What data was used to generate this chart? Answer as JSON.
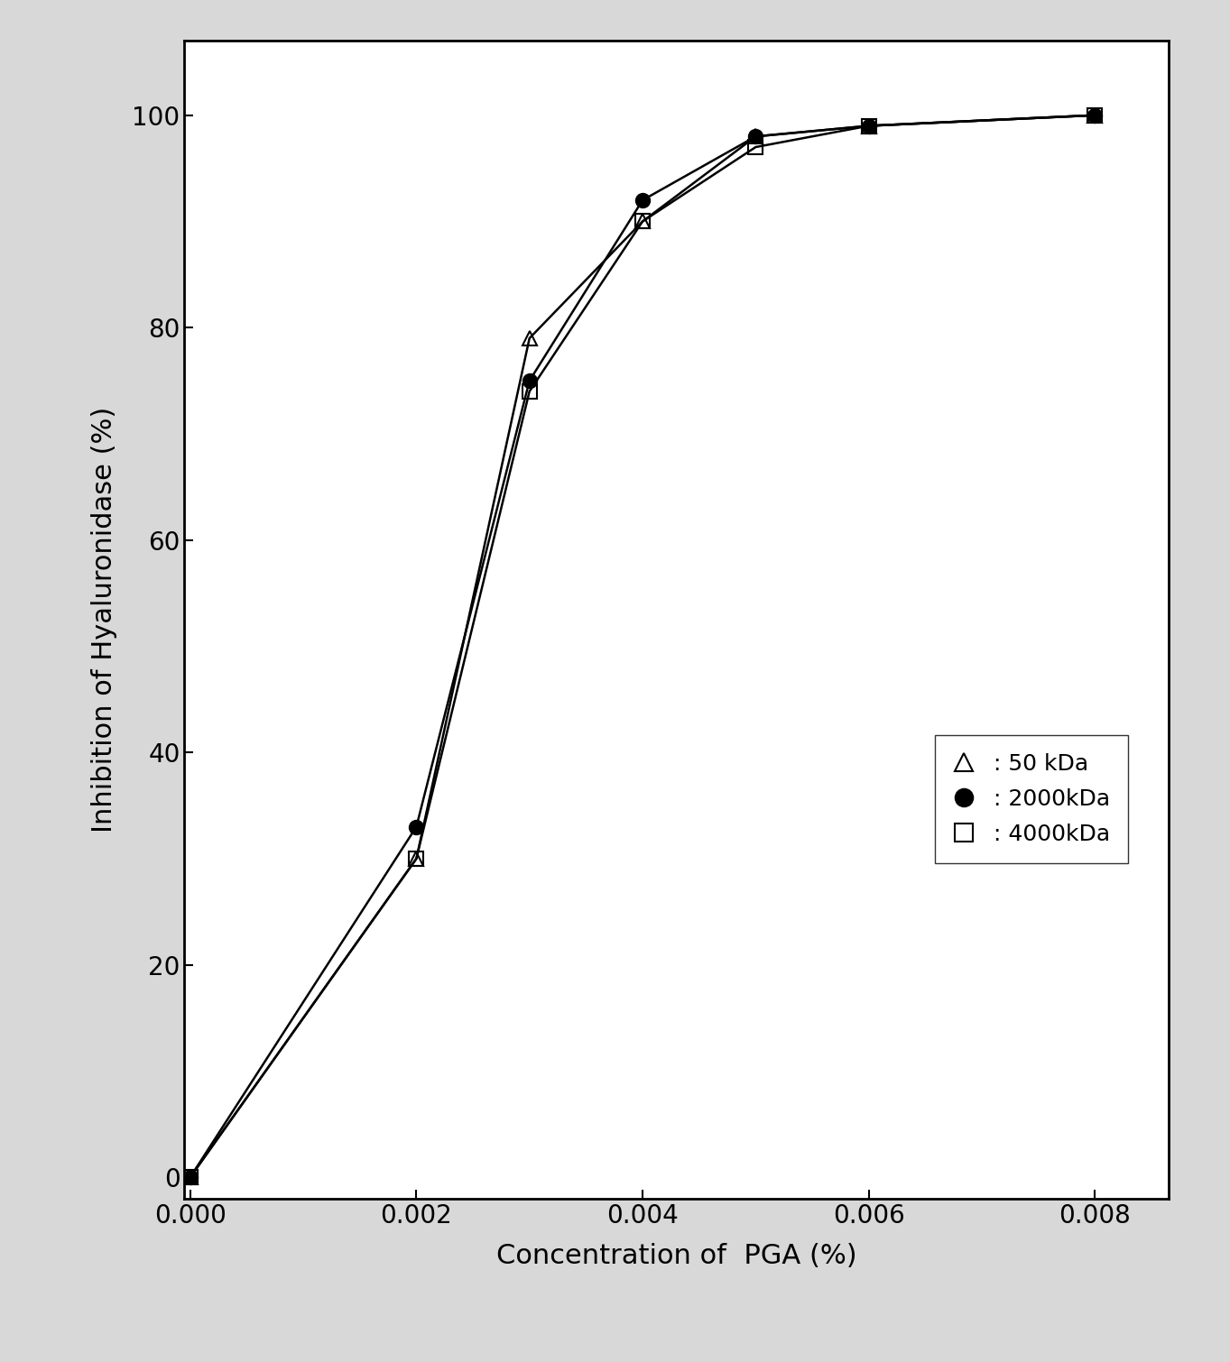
{
  "series": [
    {
      "label": ": 50 kDa",
      "x": [
        0.0,
        0.002,
        0.003,
        0.004,
        0.005,
        0.006,
        0.008
      ],
      "y": [
        0,
        30,
        79,
        90,
        98,
        99,
        100
      ],
      "color": "#000000",
      "marker": "^",
      "markersize": 11,
      "markerfacecolor": "none",
      "markeredgecolor": "#000000",
      "linewidth": 1.8
    },
    {
      "label": ": 2000kDa",
      "x": [
        0.0,
        0.002,
        0.003,
        0.004,
        0.005,
        0.006,
        0.008
      ],
      "y": [
        0,
        33,
        75,
        92,
        98,
        99,
        100
      ],
      "color": "#000000",
      "marker": "o",
      "markersize": 11,
      "markerfacecolor": "#000000",
      "markeredgecolor": "#000000",
      "linewidth": 1.8
    },
    {
      "label": ": 4000kDa",
      "x": [
        0.0,
        0.002,
        0.003,
        0.004,
        0.005,
        0.006,
        0.008
      ],
      "y": [
        0,
        30,
        74,
        90,
        97,
        99,
        100
      ],
      "color": "#000000",
      "marker": "s",
      "markersize": 11,
      "markerfacecolor": "none",
      "markeredgecolor": "#000000",
      "linewidth": 1.8
    }
  ],
  "xlabel": "Concentration of  PGA (%)",
  "ylabel": "Inhibition of Hyaluronidase (%)",
  "xlim": [
    -5e-05,
    0.00865
  ],
  "ylim": [
    -2,
    107
  ],
  "xticks": [
    0.0,
    0.002,
    0.004,
    0.006,
    0.008
  ],
  "yticks": [
    0,
    20,
    40,
    60,
    80,
    100
  ],
  "xlabel_fontsize": 22,
  "ylabel_fontsize": 22,
  "tick_fontsize": 20,
  "legend_fontsize": 18,
  "background_color": "#ffffff",
  "outer_background": "#d8d8d8"
}
